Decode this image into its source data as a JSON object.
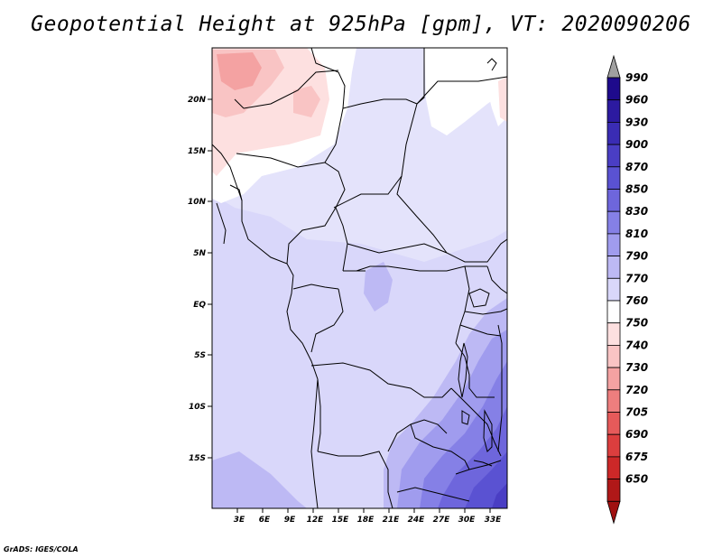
{
  "title": "Geopotential Height at 925hPa [gpm], VT: 2020090206",
  "credit": "GrADS: IGES/COLA",
  "map": {
    "region": "Central Africa",
    "lon_range": [
      0,
      35
    ],
    "lat_range": [
      -20,
      25
    ],
    "lon_ticks": [
      "3E",
      "6E",
      "9E",
      "12E",
      "15E",
      "18E",
      "21E",
      "24E",
      "27E",
      "30E",
      "33E"
    ],
    "lat_ticks": [
      "20N",
      "15N",
      "10N",
      "5N",
      "EQ",
      "5S",
      "10S",
      "15S"
    ]
  },
  "legend": {
    "labels": [
      "990",
      "960",
      "930",
      "900",
      "870",
      "850",
      "830",
      "810",
      "790",
      "770",
      "760",
      "750",
      "740",
      "730",
      "720",
      "705",
      "690",
      "675",
      "650"
    ],
    "colors": [
      "#1e0a8c",
      "#2c1aa0",
      "#3a2cb4",
      "#4a3ec4",
      "#5a52d2",
      "#6e66dc",
      "#8580e6",
      "#a09cee",
      "#bdb9f4",
      "#d9d7fa",
      "#ffffff",
      "#fde0e0",
      "#f9c4c4",
      "#f4a2a2",
      "#ee7e7e",
      "#e65a5a",
      "#dc3e3e",
      "#cc2828",
      "#b01818"
    ],
    "top_arrow_color": "#a0a0a0",
    "bottom_arrow_color": "#a01010"
  }
}
